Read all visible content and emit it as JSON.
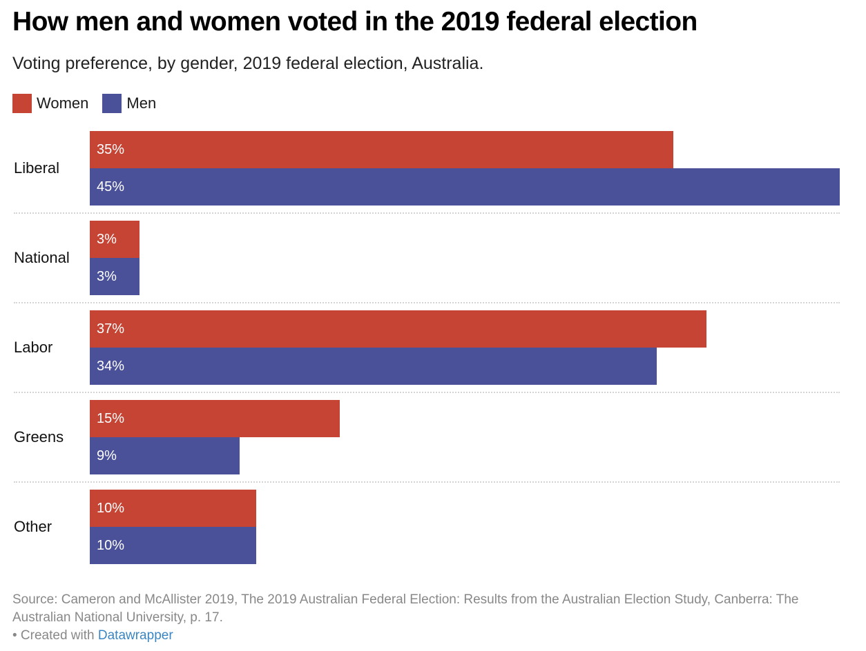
{
  "colors": {
    "women": "#c64434",
    "men": "#4a5199"
  },
  "chart_data": {
    "type": "bar",
    "orientation": "horizontal",
    "title": "How men and women voted in the 2019 federal election",
    "subtitle": "Voting preference, by gender, 2019 federal election, Australia.",
    "categories": [
      "Liberal",
      "National",
      "Labor",
      "Greens",
      "Other"
    ],
    "series": [
      {
        "name": "Women",
        "values": [
          35,
          3,
          37,
          15,
          10
        ],
        "labels": [
          "35%",
          "3%",
          "37%",
          "15%",
          "10%"
        ]
      },
      {
        "name": "Men",
        "values": [
          45,
          3,
          34,
          9,
          10
        ],
        "labels": [
          "45%",
          "3%",
          "34%",
          "9%",
          "10%"
        ]
      }
    ],
    "xlim": [
      0,
      45
    ],
    "unit": "%",
    "legend": "top-left",
    "grid": false
  },
  "footer": {
    "source": "Source: Cameron and McAllister 2019, The 2019 Australian Federal Election: Results from the Australian Election Study, Canberra: The Australian National University, p. 17.",
    "created_with": "• Created with ",
    "link": "Datawrapper"
  }
}
